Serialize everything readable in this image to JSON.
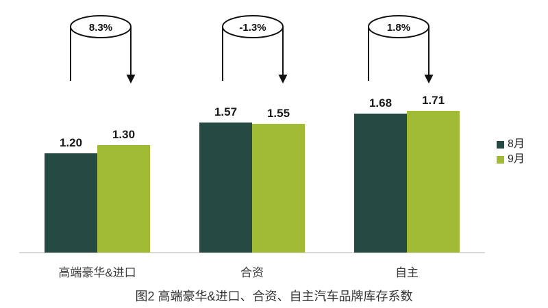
{
  "chart_data": {
    "type": "bar",
    "title": "图2 高端豪华&进口、合资、自主汽车品牌库存系数",
    "categories": [
      "高端豪华&进口",
      "合资",
      "自主"
    ],
    "series": [
      {
        "name": "8月",
        "color": "#254a44",
        "values": [
          1.2,
          1.57,
          1.68
        ]
      },
      {
        "name": "9月",
        "color": "#a2bb35",
        "values": [
          1.3,
          1.55,
          1.71
        ]
      }
    ],
    "value_labels": [
      [
        "1.20",
        "1.57",
        "1.68"
      ],
      [
        "1.30",
        "1.55",
        "1.71"
      ]
    ],
    "annotations": [
      "8.3%",
      "-1.3%",
      "1.8%"
    ],
    "xlabel": "",
    "ylabel": "",
    "ylim": [
      0,
      2
    ],
    "y_axis": "hidden",
    "grid": false,
    "legend_position": "right",
    "colors": {
      "axis_line": "#d9d9d9",
      "annotation_stroke": "#111111",
      "value_text": "#1a1a1a",
      "category_text": "#3d3d3d",
      "title_text": "#333333"
    }
  }
}
